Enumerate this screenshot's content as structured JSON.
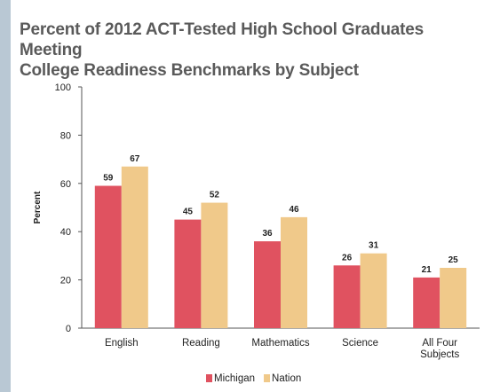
{
  "chart_data": {
    "type": "bar",
    "title_lines": [
      "Percent of 2012 ACT-Tested High School Graduates Meeting",
      "College Readiness Benchmarks by Subject"
    ],
    "ylabel": "Percent",
    "xlabel": "",
    "ylim": [
      0,
      100
    ],
    "yticks": [
      0,
      20,
      40,
      60,
      80,
      100
    ],
    "grid": false,
    "legend_position": "bottom-center",
    "categories": [
      [
        "English"
      ],
      [
        "Reading"
      ],
      [
        "Mathematics"
      ],
      [
        "Science"
      ],
      [
        "All Four",
        "Subjects"
      ]
    ],
    "series": [
      {
        "name": "Michigan",
        "color": "#e05260",
        "values": [
          59,
          45,
          36,
          26,
          21
        ]
      },
      {
        "name": "Nation",
        "color": "#f0c98a",
        "values": [
          67,
          52,
          46,
          31,
          25
        ]
      }
    ]
  }
}
